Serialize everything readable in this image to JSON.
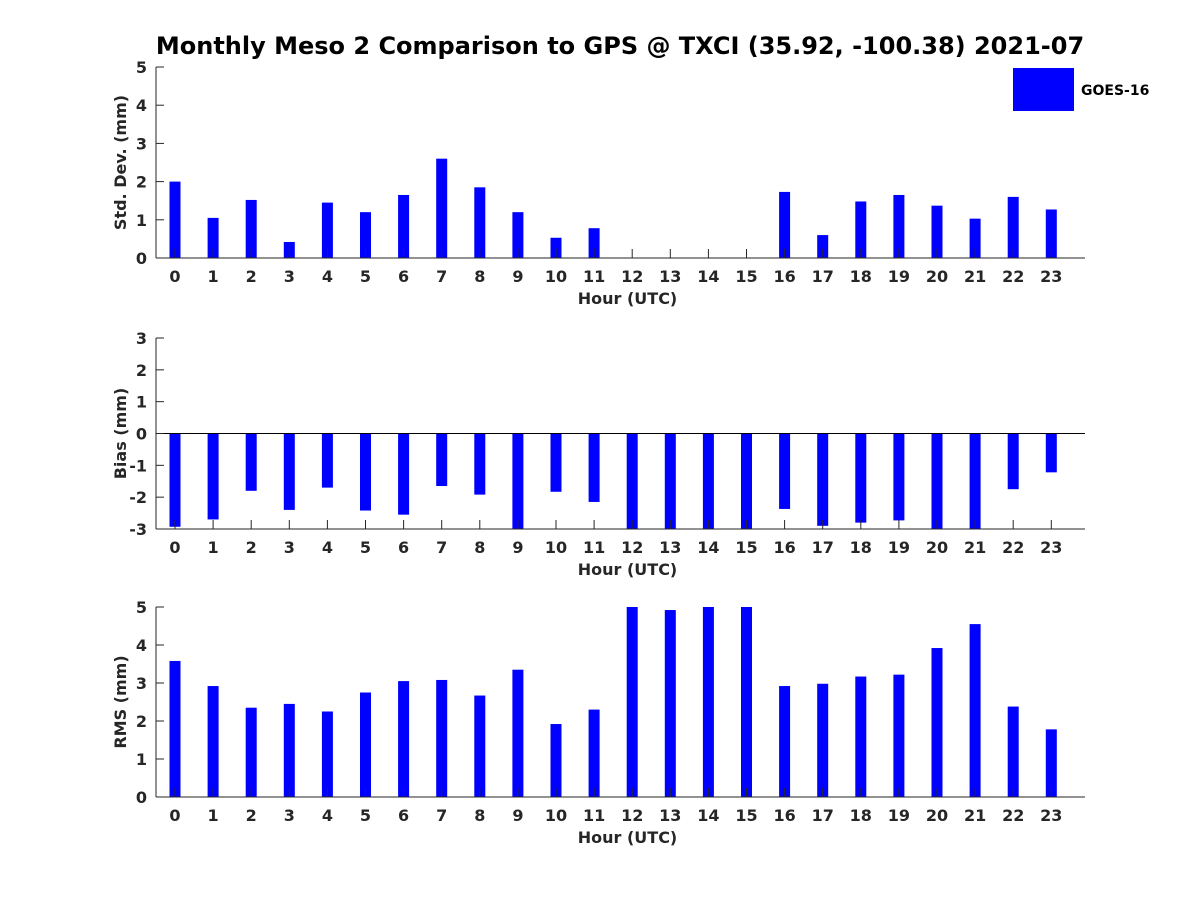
{
  "chart_data": {
    "title": "Monthly Meso 2 Comparison to GPS @ TXCI (35.92, -100.38) 2021-07",
    "legend": {
      "label": "GOES-16",
      "color": "#0000ff",
      "placement": "top-right"
    },
    "panels": [
      {
        "type": "bar",
        "ylabel": "Std. Dev. (mm)",
        "xlabel": "Hour (UTC)",
        "ylim": [
          0,
          5
        ],
        "yticks": [
          0,
          1,
          2,
          3,
          4,
          5
        ],
        "categories": [
          "0",
          "1",
          "2",
          "3",
          "4",
          "5",
          "6",
          "7",
          "8",
          "9",
          "10",
          "11",
          "12",
          "13",
          "14",
          "15",
          "16",
          "17",
          "18",
          "19",
          "20",
          "21",
          "22",
          "23"
        ],
        "series": [
          {
            "name": "GOES-16",
            "values": [
              2.0,
              1.05,
              1.52,
              0.42,
              1.45,
              1.2,
              1.65,
              2.6,
              1.85,
              1.2,
              0.53,
              0.78,
              0,
              0,
              0,
              0,
              1.73,
              0.6,
              1.48,
              1.65,
              1.37,
              1.03,
              1.6,
              1.27
            ]
          }
        ]
      },
      {
        "type": "bar",
        "ylabel": "Bias (mm)",
        "xlabel": "Hour (UTC)",
        "ylim": [
          -3,
          3
        ],
        "yticks": [
          -3,
          -2,
          -1,
          0,
          1,
          2,
          3
        ],
        "categories": [
          "0",
          "1",
          "2",
          "3",
          "4",
          "5",
          "6",
          "7",
          "8",
          "9",
          "10",
          "11",
          "12",
          "13",
          "14",
          "15",
          "16",
          "17",
          "18",
          "19",
          "20",
          "21",
          "22",
          "23"
        ],
        "series": [
          {
            "name": "GOES-16",
            "values": [
              -2.93,
              -2.7,
              -1.8,
              -2.4,
              -1.7,
              -2.42,
              -2.55,
              -1.65,
              -1.92,
              -3.0,
              -1.83,
              -2.15,
              -3.0,
              -3.0,
              -3.0,
              -3.0,
              -2.37,
              -2.9,
              -2.8,
              -2.73,
              -3.0,
              -3.0,
              -1.75,
              -1.22
            ]
          }
        ]
      },
      {
        "type": "bar",
        "ylabel": "RMS (mm)",
        "xlabel": "Hour (UTC)",
        "ylim": [
          0,
          5
        ],
        "yticks": [
          0,
          1,
          2,
          3,
          4,
          5
        ],
        "categories": [
          "0",
          "1",
          "2",
          "3",
          "4",
          "5",
          "6",
          "7",
          "8",
          "9",
          "10",
          "11",
          "12",
          "13",
          "14",
          "15",
          "16",
          "17",
          "18",
          "19",
          "20",
          "21",
          "22",
          "23"
        ],
        "series": [
          {
            "name": "GOES-16",
            "values": [
              3.58,
              2.92,
              2.35,
              2.45,
              2.25,
              2.75,
              3.05,
              3.08,
              2.67,
              3.35,
              1.92,
              2.3,
              5.0,
              4.92,
              5.0,
              5.0,
              2.92,
              2.98,
              3.17,
              3.22,
              3.92,
              4.55,
              2.38,
              1.78
            ]
          }
        ]
      }
    ]
  }
}
